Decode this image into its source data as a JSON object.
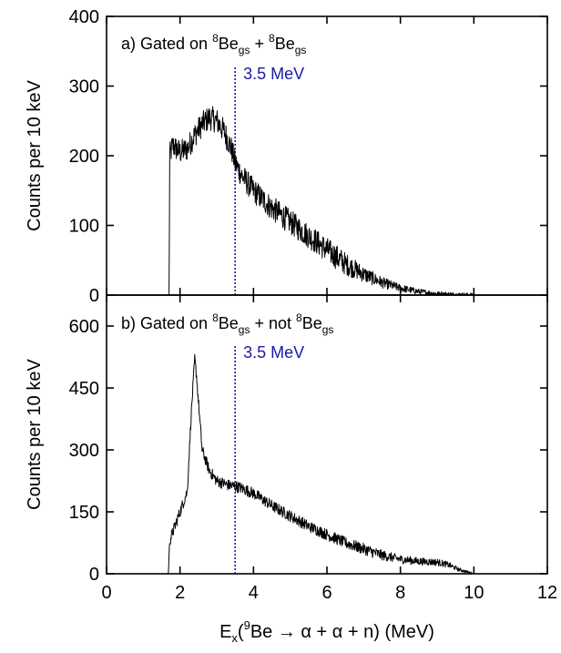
{
  "chart_data": [
    {
      "type": "line",
      "panel_label": {
        "prefix": "a) Gated on ",
        "sup1": "8",
        "be1": "Be",
        "sub1": "gs",
        "join": " + ",
        "sup2": "8",
        "be2": "Be",
        "sub2": "gs"
      },
      "ylabel": "Counts per 10 keV",
      "xlim": [
        0,
        12
      ],
      "ylim": [
        0,
        400
      ],
      "y_ticks": [
        0,
        100,
        200,
        300,
        400
      ],
      "y_tick_labels": [
        "0",
        "100",
        "200",
        "300",
        "400"
      ],
      "marker": {
        "x": 3.5,
        "label": "3.5 MeV",
        "color": "#1a1aa6"
      },
      "envelope_x": [
        1.6,
        1.7,
        1.72,
        1.8,
        2.0,
        2.2,
        2.4,
        2.6,
        2.8,
        3.0,
        3.2,
        3.4,
        3.5,
        3.7,
        4.0,
        4.5,
        5.0,
        5.5,
        6.0,
        6.5,
        7.0,
        7.5,
        8.0,
        8.5,
        9.0,
        9.5,
        10.0,
        10.5
      ],
      "envelope_y": [
        0,
        0,
        200,
        215,
        205,
        210,
        230,
        245,
        255,
        250,
        235,
        210,
        190,
        170,
        150,
        125,
        105,
        85,
        65,
        45,
        30,
        18,
        10,
        5,
        2,
        1,
        0,
        0
      ],
      "noise": 18
    },
    {
      "type": "line",
      "panel_label": {
        "prefix": "b) Gated on ",
        "sup1": "8",
        "be1": "Be",
        "sub1": "gs",
        "join": " + not ",
        "sup2": "8",
        "be2": "Be",
        "sub2": "gs"
      },
      "ylabel": "Counts per 10 keV",
      "xlim": [
        0,
        12
      ],
      "ylim": [
        0,
        675
      ],
      "y_ticks": [
        0,
        150,
        300,
        450,
        600
      ],
      "y_tick_labels": [
        "0",
        "150",
        "300",
        "450",
        "600"
      ],
      "marker": {
        "x": 3.5,
        "label": "3.5 MeV",
        "color": "#1a1aa6"
      },
      "envelope_x": [
        1.6,
        1.68,
        1.72,
        1.8,
        2.0,
        2.2,
        2.3,
        2.4,
        2.45,
        2.5,
        2.6,
        2.8,
        3.0,
        3.3,
        3.6,
        4.0,
        4.5,
        5.0,
        5.5,
        6.0,
        6.5,
        7.0,
        7.5,
        8.0,
        8.5,
        9.0,
        9.3,
        9.6,
        10.0,
        10.5
      ],
      "envelope_y": [
        0,
        0,
        80,
        100,
        150,
        200,
        380,
        520,
        480,
        420,
        300,
        250,
        225,
        215,
        210,
        195,
        165,
        140,
        115,
        95,
        75,
        60,
        45,
        35,
        30,
        28,
        22,
        10,
        0,
        0
      ],
      "noise": 14
    }
  ],
  "x_axis": {
    "ticks": [
      0,
      2,
      4,
      6,
      8,
      10,
      12
    ],
    "tick_labels": [
      "0",
      "2",
      "4",
      "6",
      "8",
      "10",
      "12"
    ],
    "label": {
      "e": "E",
      "sub_x": "x",
      "paren": "(",
      "sup9": "9",
      "be": "Be ",
      "arrow": "→",
      "rest": " α + α + n) (MeV)"
    }
  }
}
